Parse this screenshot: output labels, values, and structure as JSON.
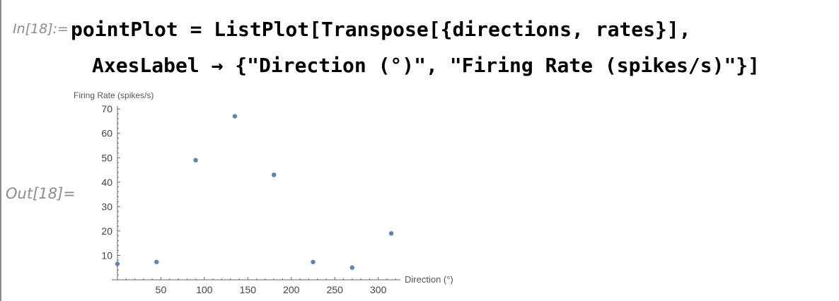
{
  "notebook": {
    "in_label": "In[18]:=",
    "out_label": "Out[18]=",
    "code_line1": "pointPlot = ListPlot[Transpose[{directions, rates}],",
    "code_line2": "AxesLabel → {\"Direction (°)\", \"Firing Rate (spikes/s)\"}]"
  },
  "chart_data": {
    "type": "scatter",
    "xlabel": "Direction (°)",
    "ylabel": "Firing Rate (spikes/s)",
    "x": [
      0,
      45,
      90,
      135,
      180,
      225,
      270,
      315
    ],
    "y": [
      6.5,
      7.3,
      49,
      67,
      43,
      7.3,
      5,
      19
    ],
    "xlim": [
      0,
      315
    ],
    "ylim": [
      0,
      70
    ],
    "xticks": [
      50,
      100,
      150,
      200,
      250,
      300
    ],
    "yticks": [
      10,
      20,
      30,
      40,
      50,
      60,
      70
    ],
    "grid": false,
    "point_color": "#5e81b5",
    "axis_color": "#666666"
  }
}
